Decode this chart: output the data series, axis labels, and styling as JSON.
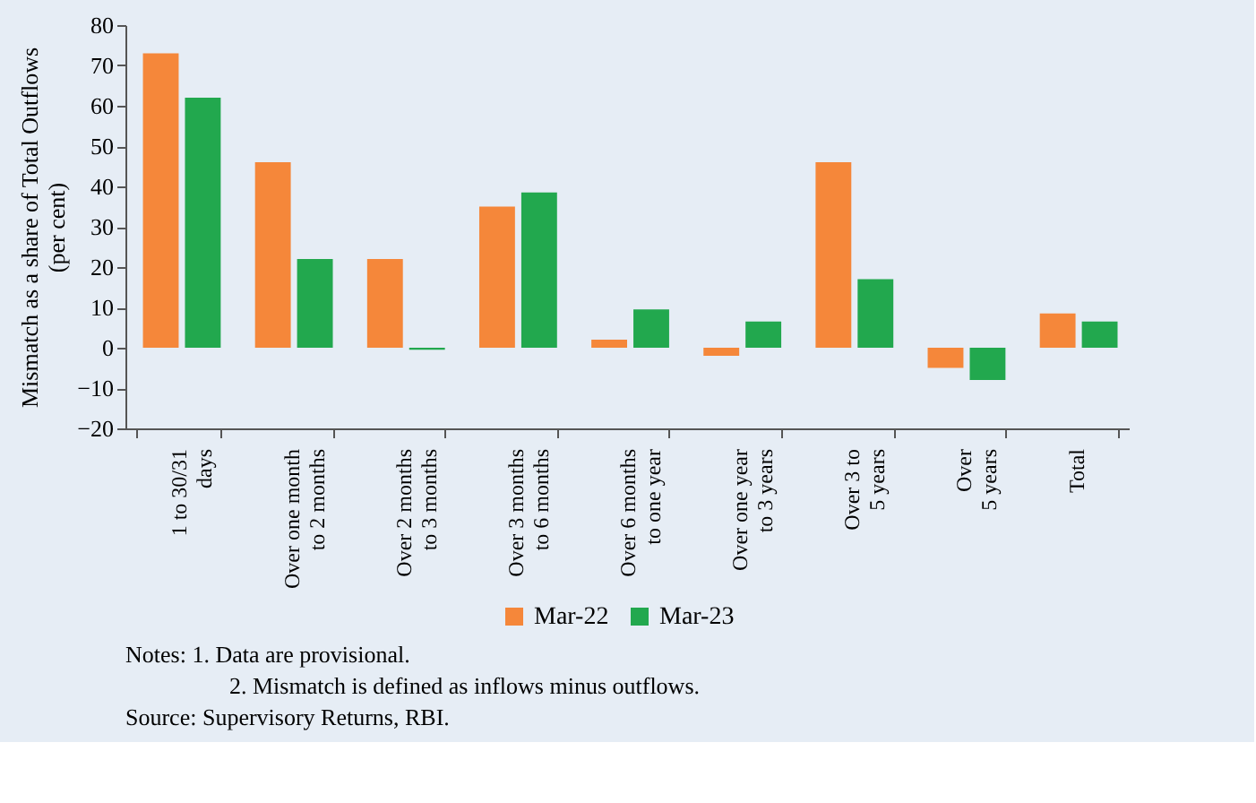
{
  "chart_data": {
    "type": "bar",
    "ylabel": "Mismatch as a share of Total Outflows\n(per cent)",
    "categories": [
      "1 to 30/31\ndays",
      "Over one month\nto 2 months",
      "Over 2 months\nto 3 months",
      "Over 3 months\nto 6 months",
      "Over  6  months\nto one  year",
      "Over one year\nto 3 years",
      "Over 3 to\n5 years",
      "Over\n5 years",
      "Total"
    ],
    "series": [
      {
        "name": "Mar-22",
        "color": "#f5873a",
        "values": [
          73,
          46,
          22,
          35,
          2,
          -2,
          46,
          -5,
          8.5
        ]
      },
      {
        "name": "Mar-23",
        "color": "#22a84e",
        "values": [
          62,
          22,
          -0.5,
          38.5,
          9.5,
          6.5,
          17,
          -8,
          6.5
        ]
      }
    ],
    "ylim": [
      -20,
      80
    ],
    "yticks": [
      -20,
      -10,
      0,
      10,
      20,
      30,
      40,
      50,
      60,
      70,
      80
    ],
    "grid": false,
    "legend": "bottom",
    "annotations": [
      "Notes: 1. Data are provisional.",
      "2. Mismatch is defined as inflows minus outflows.",
      "Source: Supervisory Returns, RBI."
    ]
  }
}
